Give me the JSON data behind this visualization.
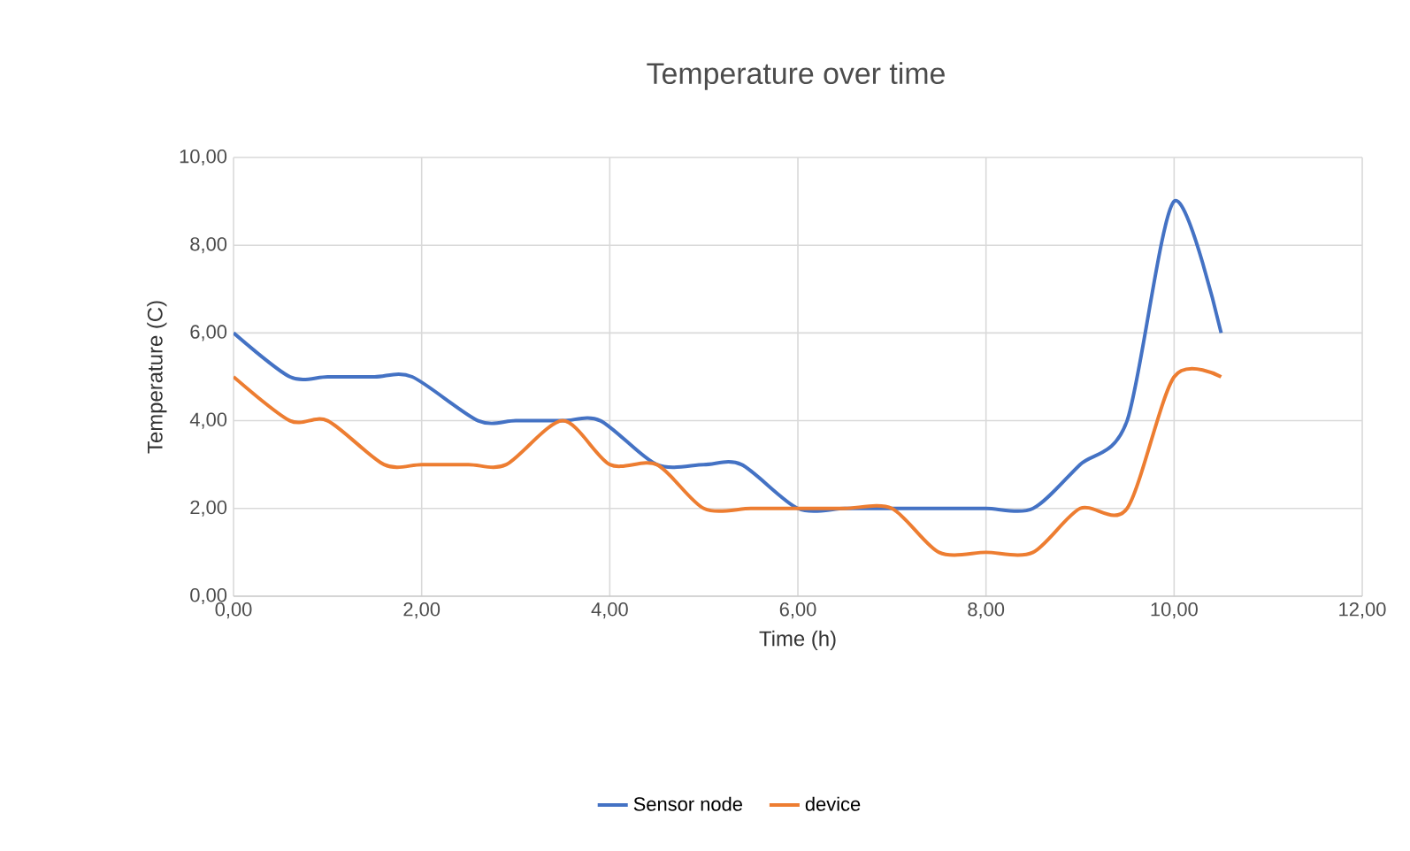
{
  "chart_data": {
    "type": "line",
    "title": "Temperature over time",
    "xlabel": "Time (h)",
    "ylabel": "Temperature (C)",
    "xlim": [
      0,
      12
    ],
    "ylim": [
      0,
      10
    ],
    "xticks": [
      {
        "value": 0,
        "label": "0,00"
      },
      {
        "value": 2,
        "label": "2,00"
      },
      {
        "value": 4,
        "label": "4,00"
      },
      {
        "value": 6,
        "label": "6,00"
      },
      {
        "value": 8,
        "label": "8,00"
      },
      {
        "value": 10,
        "label": "10,00"
      },
      {
        "value": 12,
        "label": "12,00"
      }
    ],
    "yticks": [
      {
        "value": 0,
        "label": "0,00"
      },
      {
        "value": 2,
        "label": "2,00"
      },
      {
        "value": 4,
        "label": "4,00"
      },
      {
        "value": 6,
        "label": "6,00"
      },
      {
        "value": 8,
        "label": "8,00"
      },
      {
        "value": 10,
        "label": "10,00"
      }
    ],
    "grid": true,
    "legend": "bottom",
    "marker": "none",
    "line_style": "solid",
    "series": [
      {
        "name": "Sensor node",
        "color": "#4472c4",
        "x": [
          0,
          0.6,
          1,
          1.5,
          1.9,
          2.6,
          3,
          3.5,
          3.9,
          4.5,
          5,
          5.4,
          6,
          6.5,
          7,
          7.5,
          8,
          8.5,
          9,
          9.5,
          10,
          10.5
        ],
        "values": [
          6,
          5,
          5,
          5,
          5,
          4,
          4,
          4,
          4,
          3,
          3,
          3,
          2,
          2,
          2,
          2,
          2,
          2,
          3,
          4,
          9,
          6
        ]
      },
      {
        "name": "device",
        "color": "#ed7d31",
        "x": [
          0,
          0.6,
          1,
          1.6,
          2,
          2.5,
          2.9,
          3.5,
          4,
          4.5,
          5,
          5.5,
          6,
          6.5,
          7,
          7.5,
          8,
          8.5,
          9,
          9.5,
          10,
          10.5
        ],
        "values": [
          5,
          4,
          4,
          3,
          3,
          3,
          3,
          4,
          3,
          3,
          2,
          2,
          2,
          2,
          2,
          1,
          1,
          1,
          2,
          2,
          5,
          5
        ]
      }
    ]
  }
}
